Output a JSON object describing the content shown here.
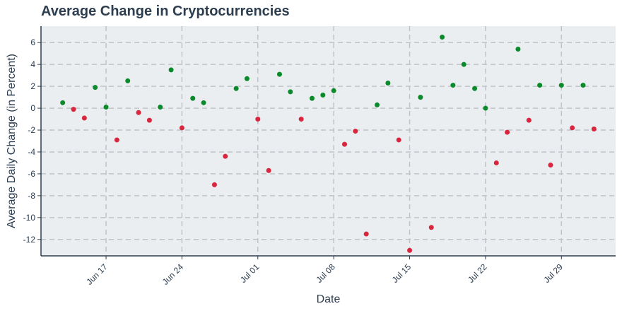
{
  "chart_data": {
    "type": "scatter",
    "title": "Average Change in Cryptocurrencies",
    "xlabel": "Date",
    "ylabel": "Average Daily Change (in Percent)",
    "x_tick_labels": [
      "Jun 17",
      "Jun 24",
      "Jul 01",
      "Jul 08",
      "Jul 15",
      "Jul 22",
      "Jul 29"
    ],
    "y_ticks": [
      6,
      4,
      2,
      0,
      -2,
      -4,
      -6,
      -8,
      -10,
      -12
    ],
    "ylim": [
      -13.5,
      7.5
    ],
    "xlim": [
      "2024-06-11",
      "2024-08-03"
    ],
    "grid": true,
    "colors": {
      "positive": "#0a8a2a",
      "negative": "#d7263d",
      "plot_bg": "#ebeef0",
      "axis": "#2d3e50",
      "grid": "#c0c4c8"
    },
    "points": [
      {
        "x": "2024-06-13",
        "y": 0.5
      },
      {
        "x": "2024-06-14",
        "y": -0.1
      },
      {
        "x": "2024-06-15",
        "y": -0.9
      },
      {
        "x": "2024-06-16",
        "y": 1.9
      },
      {
        "x": "2024-06-17",
        "y": 0.1
      },
      {
        "x": "2024-06-18",
        "y": -2.9
      },
      {
        "x": "2024-06-19",
        "y": 2.5
      },
      {
        "x": "2024-06-20",
        "y": -0.4
      },
      {
        "x": "2024-06-21",
        "y": -1.1
      },
      {
        "x": "2024-06-22",
        "y": 0.1
      },
      {
        "x": "2024-06-23",
        "y": 3.5
      },
      {
        "x": "2024-06-24",
        "y": -1.8
      },
      {
        "x": "2024-06-25",
        "y": 0.9
      },
      {
        "x": "2024-06-26",
        "y": 0.5
      },
      {
        "x": "2024-06-27",
        "y": -7.0
      },
      {
        "x": "2024-06-28",
        "y": -4.4
      },
      {
        "x": "2024-06-29",
        "y": 1.8
      },
      {
        "x": "2024-06-30",
        "y": 2.7
      },
      {
        "x": "2024-07-01",
        "y": -1.0
      },
      {
        "x": "2024-07-02",
        "y": -5.7
      },
      {
        "x": "2024-07-03",
        "y": 3.1
      },
      {
        "x": "2024-07-04",
        "y": 1.5
      },
      {
        "x": "2024-07-05",
        "y": -1.0
      },
      {
        "x": "2024-07-06",
        "y": 0.9
      },
      {
        "x": "2024-07-07",
        "y": 1.2
      },
      {
        "x": "2024-07-08",
        "y": 1.6
      },
      {
        "x": "2024-07-09",
        "y": -3.3
      },
      {
        "x": "2024-07-10",
        "y": -2.1
      },
      {
        "x": "2024-07-11",
        "y": -11.5
      },
      {
        "x": "2024-07-12",
        "y": 0.3
      },
      {
        "x": "2024-07-13",
        "y": 2.3
      },
      {
        "x": "2024-07-14",
        "y": -2.9
      },
      {
        "x": "2024-07-15",
        "y": -13.0
      },
      {
        "x": "2024-07-16",
        "y": 1.0
      },
      {
        "x": "2024-07-17",
        "y": -10.9
      },
      {
        "x": "2024-07-18",
        "y": 6.5
      },
      {
        "x": "2024-07-19",
        "y": 2.1
      },
      {
        "x": "2024-07-20",
        "y": 4.0
      },
      {
        "x": "2024-07-21",
        "y": 1.8
      },
      {
        "x": "2024-07-22",
        "y": 0.0
      },
      {
        "x": "2024-07-23",
        "y": -5.0
      },
      {
        "x": "2024-07-24",
        "y": -2.2
      },
      {
        "x": "2024-07-25",
        "y": 5.4
      },
      {
        "x": "2024-07-26",
        "y": -1.1
      },
      {
        "x": "2024-07-27",
        "y": 2.1
      },
      {
        "x": "2024-07-28",
        "y": -5.2
      },
      {
        "x": "2024-07-29",
        "y": 2.1
      },
      {
        "x": "2024-07-30",
        "y": -1.8
      },
      {
        "x": "2024-07-31",
        "y": 2.1
      },
      {
        "x": "2024-08-01",
        "y": -1.9
      }
    ]
  }
}
